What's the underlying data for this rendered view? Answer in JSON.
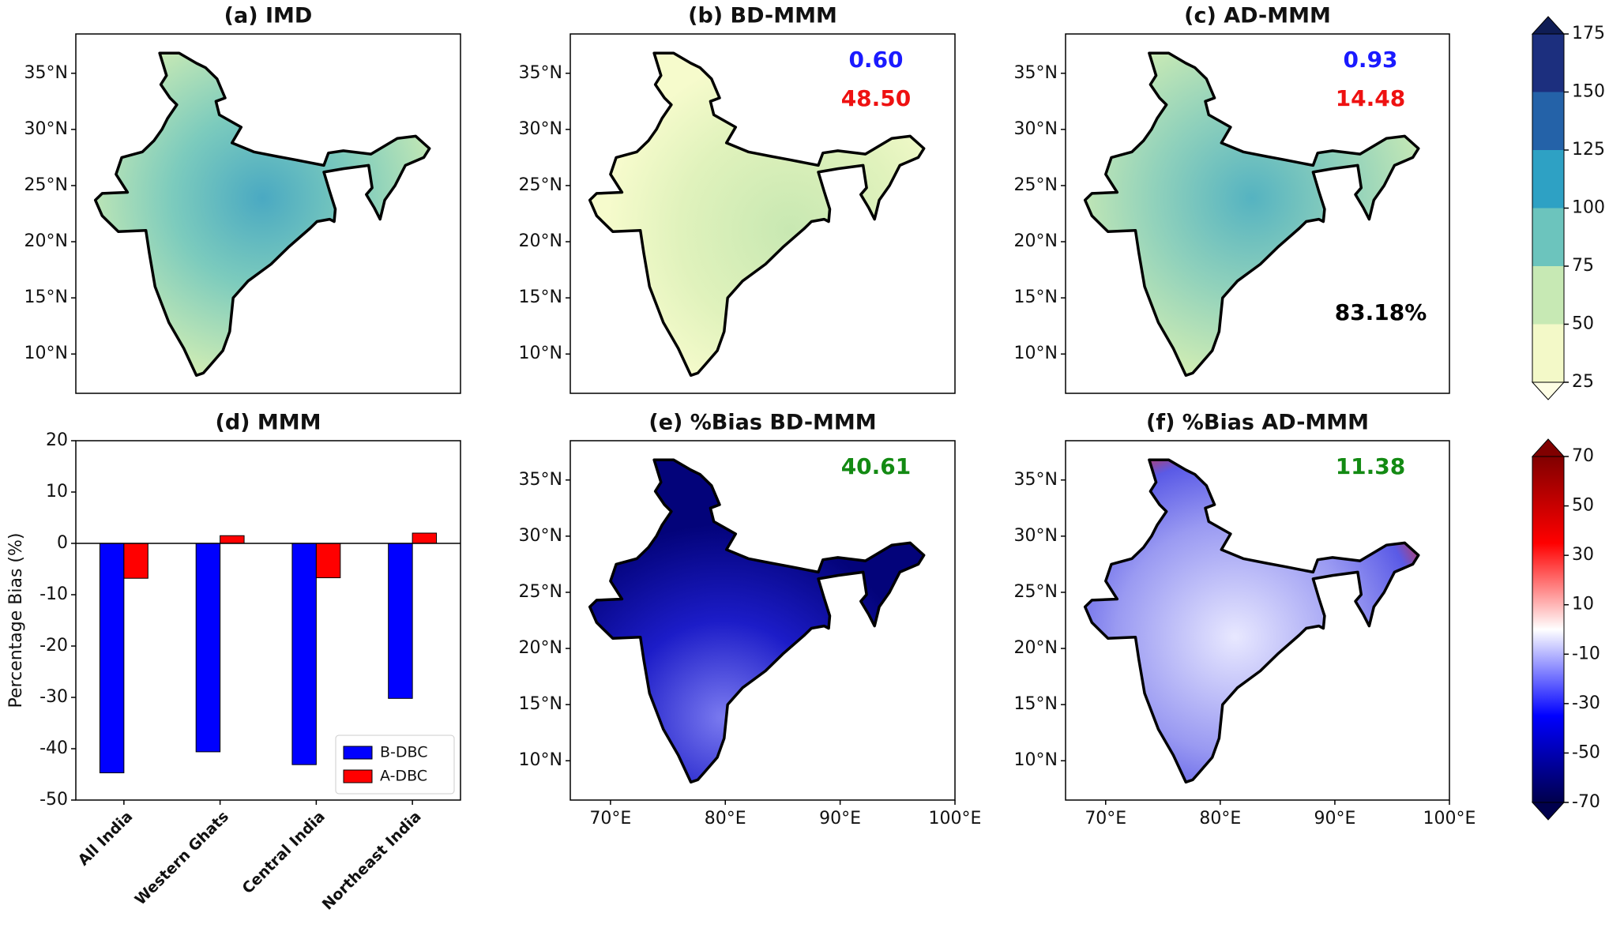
{
  "chart_data": [
    {
      "type": "map",
      "title": "(a) IMD",
      "xlim": [
        66.5,
        100
      ],
      "ylim": [
        6.5,
        38.5
      ],
      "yticks": [
        {
          "value": 10,
          "label": "10°N"
        },
        {
          "value": 15,
          "label": "15°N"
        },
        {
          "value": 20,
          "label": "20°N"
        },
        {
          "value": 25,
          "label": "25°N"
        },
        {
          "value": 30,
          "label": "30°N"
        },
        {
          "value": 35,
          "label": "35°N"
        }
      ]
    },
    {
      "type": "map",
      "title": "(b) BD-MMM",
      "xlim": [
        66.5,
        100
      ],
      "ylim": [
        6.5,
        38.5
      ],
      "yticks": [
        {
          "value": 10,
          "label": "10°N"
        },
        {
          "value": 15,
          "label": "15°N"
        },
        {
          "value": 20,
          "label": "20°N"
        },
        {
          "value": 25,
          "label": "25°N"
        },
        {
          "value": 30,
          "label": "30°N"
        },
        {
          "value": 35,
          "label": "35°N"
        }
      ],
      "annotations": [
        {
          "text": "0.60",
          "color": "#1a1aff"
        },
        {
          "text": "48.50",
          "color": "#ee1111"
        }
      ]
    },
    {
      "type": "map",
      "title": "(c) AD-MMM",
      "xlim": [
        66.5,
        100
      ],
      "ylim": [
        6.5,
        38.5
      ],
      "yticks": [
        {
          "value": 10,
          "label": "10°N"
        },
        {
          "value": 15,
          "label": "15°N"
        },
        {
          "value": 20,
          "label": "20°N"
        },
        {
          "value": 25,
          "label": "25°N"
        },
        {
          "value": 30,
          "label": "30°N"
        },
        {
          "value": 35,
          "label": "35°N"
        }
      ],
      "annotations": [
        {
          "text": "0.93",
          "color": "#1a1aff"
        },
        {
          "text": "14.48",
          "color": "#ee1111"
        },
        {
          "text": "83.18%",
          "color": "#000000"
        }
      ]
    },
    {
      "type": "colorbar",
      "style": "discrete",
      "ylim": [
        25,
        175
      ],
      "yticks": [
        25,
        50,
        75,
        100,
        125,
        150,
        175
      ],
      "colors": [
        "#f3f9c8",
        "#c7e9b4",
        "#6cc4bd",
        "#2ea1c4",
        "#2462a8",
        "#1c2f7e"
      ],
      "extend_colors": [
        "#fdfde4",
        "#0f1d55"
      ]
    },
    {
      "type": "bar",
      "title": "(d) MMM",
      "ylabel": "Percentage Bias (%)",
      "categories": [
        "All India",
        "Western Ghats",
        "Central India",
        "Northeast India"
      ],
      "series": [
        {
          "name": "B-DBC",
          "color": "#0000ff",
          "values": [
            -44.7,
            -40.6,
            -43.1,
            -30.2
          ]
        },
        {
          "name": "A-DBC",
          "color": "#ff0000",
          "values": [
            -6.8,
            1.5,
            -6.7,
            2.0
          ]
        }
      ],
      "ylim": [
        -50,
        20
      ],
      "yticks": [
        -50,
        -40,
        -30,
        -20,
        -10,
        0,
        10,
        20
      ],
      "legend": "lower right"
    },
    {
      "type": "map",
      "title": "(e) %Bias BD-MMM",
      "xlim": [
        66.5,
        100
      ],
      "ylim": [
        6.5,
        38.5
      ],
      "xticks": [
        {
          "value": 70,
          "label": "70°E"
        },
        {
          "value": 80,
          "label": "80°E"
        },
        {
          "value": 90,
          "label": "90°E"
        },
        {
          "value": 100,
          "label": "100°E"
        }
      ],
      "yticks": [
        {
          "value": 10,
          "label": "10°N"
        },
        {
          "value": 15,
          "label": "15°N"
        },
        {
          "value": 20,
          "label": "20°N"
        },
        {
          "value": 25,
          "label": "25°N"
        },
        {
          "value": 30,
          "label": "30°N"
        },
        {
          "value": 35,
          "label": "35°N"
        }
      ],
      "annotations": [
        {
          "text": "40.61",
          "color": "#138a13"
        }
      ]
    },
    {
      "type": "map",
      "title": "(f) %Bias AD-MMM",
      "xlim": [
        66.5,
        100
      ],
      "ylim": [
        6.5,
        38.5
      ],
      "xticks": [
        {
          "value": 70,
          "label": "70°E"
        },
        {
          "value": 80,
          "label": "80°E"
        },
        {
          "value": 90,
          "label": "90°E"
        },
        {
          "value": 100,
          "label": "100°E"
        }
      ],
      "yticks": [
        {
          "value": 10,
          "label": "10°N"
        },
        {
          "value": 15,
          "label": "15°N"
        },
        {
          "value": 20,
          "label": "20°N"
        },
        {
          "value": 25,
          "label": "25°N"
        },
        {
          "value": 30,
          "label": "30°N"
        },
        {
          "value": 35,
          "label": "35°N"
        }
      ],
      "annotations": [
        {
          "text": "11.38",
          "color": "#138a13"
        }
      ]
    },
    {
      "type": "colorbar",
      "style": "continuous",
      "ylim": [
        -70,
        70
      ],
      "yticks": [
        -70,
        -50,
        -30,
        -10,
        10,
        30,
        50,
        70
      ],
      "colors": [
        "#00004c",
        "#0000ff",
        "#ffffff",
        "#ff0000",
        "#800000"
      ],
      "extend_colors": [
        "#00004c",
        "#800000"
      ]
    }
  ]
}
